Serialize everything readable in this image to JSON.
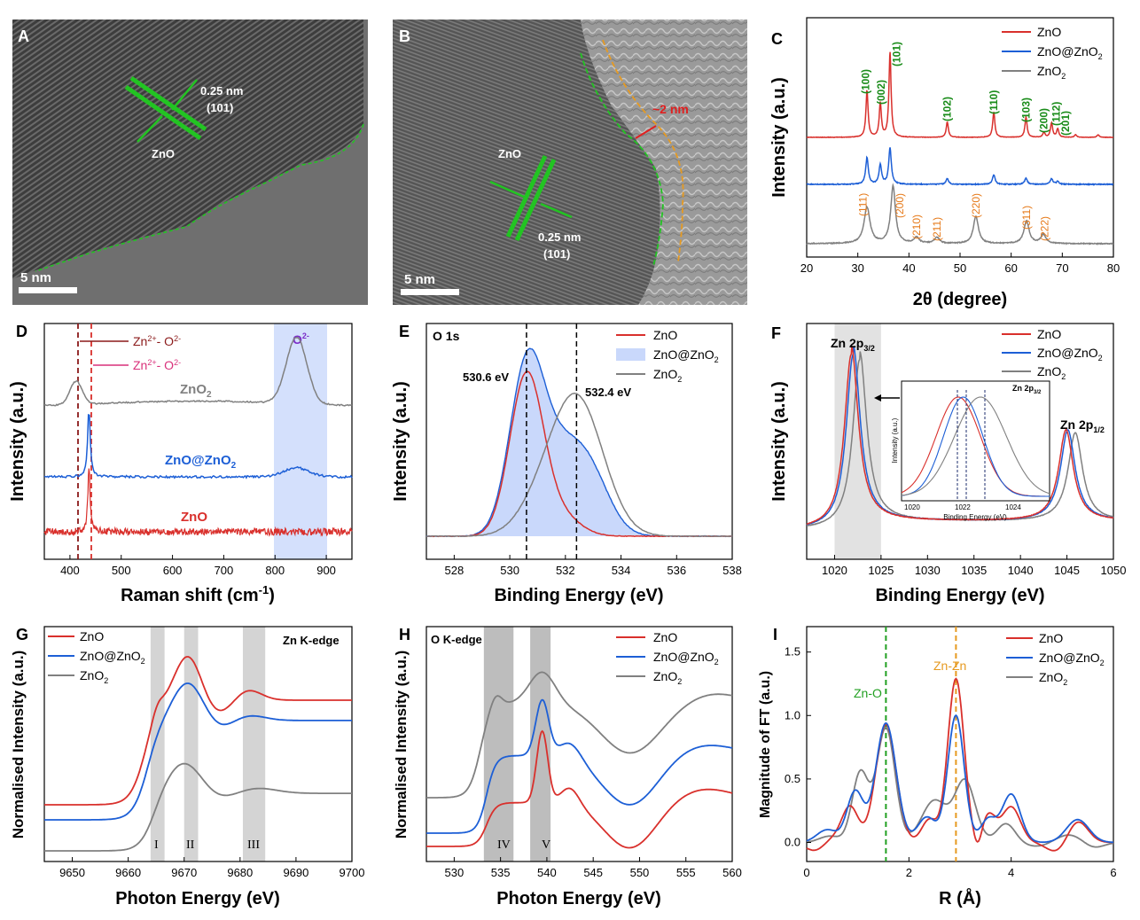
{
  "colors": {
    "zno": "#d9302c",
    "zno_zno2": "#1d5fd6",
    "zno2": "#808080",
    "green": "#22c422",
    "orange": "#e69a21",
    "shade": "#d4d4d4",
    "blue_shade": "#c9d8fb",
    "purple": "#7a2cc8"
  },
  "panels": {
    "A": {
      "letter": "A",
      "lattice": "0.25 nm",
      "plane": "(101)",
      "material": "ZnO",
      "scale": "5 nm"
    },
    "B": {
      "letter": "B",
      "lattice": "0.25 nm",
      "plane": "(101)",
      "material": "ZnO",
      "thickness": "~2 nm",
      "scale": "5 nm"
    },
    "C": {
      "letter": "C",
      "ylabel": "Intensity (a.u.)",
      "xlabel": "2θ (degree)",
      "xlim": [
        20,
        80
      ],
      "xticks": [
        "20",
        "30",
        "40",
        "50",
        "60",
        "70",
        "80"
      ],
      "legend": [
        "ZnO",
        "ZnO@ZnO",
        "ZnO"
      ],
      "legend_sub": [
        "",
        "2",
        "2"
      ],
      "zno_peaks": [
        "(100)",
        "(002)",
        "(101)",
        "(102)",
        "(110)",
        "(103)",
        "(200)",
        "(112)",
        "(201)"
      ],
      "zno2_peaks": [
        "(111)",
        "(200)",
        "(210)",
        "(211)",
        "(220)",
        "(311)",
        "(222)"
      ]
    },
    "D": {
      "letter": "D",
      "ylabel": "Intensity (a.u.)",
      "xlabel": "Raman shift (cm",
      "xlabel_sup": "-1",
      "xlabel_end": ")",
      "xlim": [
        350,
        950
      ],
      "xticks": [
        "400",
        "500",
        "600",
        "700",
        "800",
        "900"
      ],
      "ann1": "Zn",
      "ann1_sup": "2+",
      "ann1_mid": "- O",
      "ann1_sup2": "2-",
      "ann1_sub": "2",
      "ann2": "Zn",
      "ann2_sup": "2+",
      "ann2_mid": "- O",
      "ann2_sup2": "2-",
      "o2_label": "O",
      "o2_sub": "2",
      "o2_sup": "2-",
      "labels": [
        "ZnO",
        "ZnO@ZnO",
        "ZnO"
      ],
      "label_sub": [
        "2",
        "2",
        ""
      ]
    },
    "E": {
      "letter": "E",
      "title": "O 1s",
      "ylabel": "Intensity (a.u.)",
      "xlabel": "Binding Energy (eV)",
      "xlim": [
        527,
        538
      ],
      "xticks": [
        "528",
        "530",
        "532",
        "534",
        "536",
        "538"
      ],
      "peak1": "530.6 eV",
      "peak2": "532.4 eV",
      "legend": [
        "ZnO",
        "ZnO@ZnO",
        "ZnO"
      ],
      "legend_sub": [
        "",
        "2",
        "2"
      ]
    },
    "F": {
      "letter": "F",
      "ylabel": "Intensity (a.u.)",
      "xlabel": "Binding Energy (eV)",
      "xlim": [
        1017,
        1050
      ],
      "xticks": [
        "1020",
        "1025",
        "1030",
        "1035",
        "1040",
        "1045",
        "1050"
      ],
      "peak1": "Zn 2p",
      "peak1_sub": "3/2",
      "peak2": "Zn 2p",
      "peak2_sub": "1/2",
      "legend": [
        "ZnO",
        "ZnO@ZnO",
        "ZnO"
      ],
      "legend_sub": [
        "",
        "2",
        "2"
      ],
      "inset_title": "Zn 2p",
      "inset_title_sub": "3/2",
      "inset_ylabel": "Intensity (a.u.)",
      "inset_xlabel": "Binding Energy (eV)",
      "inset_xticks": [
        "1020",
        "1022",
        "1024"
      ]
    },
    "G": {
      "letter": "G",
      "title": "Zn  K-edge",
      "ylabel": "Normalised Intensity (a.u.)",
      "xlabel": "Photon Energy (eV)",
      "xlim": [
        9645,
        9700
      ],
      "xticks": [
        "9650",
        "9660",
        "9670",
        "9680",
        "9690",
        "9700"
      ],
      "regions": [
        "I",
        "II",
        "III"
      ],
      "legend": [
        "ZnO",
        "ZnO@ZnO",
        "ZnO"
      ],
      "legend_sub": [
        "",
        "2",
        "2"
      ]
    },
    "H": {
      "letter": "H",
      "title": "O  K-edge",
      "ylabel": "Normalised Intensity (a.u.)",
      "xlabel": "Photon Energy (eV)",
      "xlim": [
        527,
        560
      ],
      "xticks": [
        "530",
        "535",
        "540",
        "545",
        "550",
        "555",
        "560"
      ],
      "regions": [
        "IV",
        "V"
      ],
      "legend": [
        "ZnO",
        "ZnO@ZnO",
        "ZnO"
      ],
      "legend_sub": [
        "",
        "2",
        "2"
      ]
    },
    "I": {
      "letter": "I",
      "ylabel": "Magnitude of FT (a.u.)",
      "xlabel": "R (Å)",
      "xlim": [
        0,
        6
      ],
      "ylim": [
        -0.15,
        1.7
      ],
      "xticks": [
        "0",
        "2",
        "4",
        "6"
      ],
      "yticks": [
        "0.0",
        "0.5",
        "1.0",
        "1.5"
      ],
      "ann1": "Zn-O",
      "ann2": "Zn-Zn",
      "legend": [
        "ZnO",
        "ZnO@ZnO",
        "ZnO"
      ],
      "legend_sub": [
        "",
        "2",
        "2"
      ]
    }
  },
  "chart_data": [
    {
      "panel": "C",
      "type": "line",
      "title": "",
      "xlabel": "2θ (degree)",
      "ylabel": "Intensity (a.u.)",
      "xlim": [
        20,
        80
      ],
      "series": [
        {
          "name": "ZnO",
          "peaks_2theta": [
            31.8,
            34.4,
            36.3,
            47.5,
            56.6,
            62.9,
            66.4,
            67.9,
            69.1
          ]
        },
        {
          "name": "ZnO@ZnO2",
          "peaks_2theta": [
            31.8,
            34.4,
            36.3,
            47.5,
            56.6,
            62.9,
            67.9
          ]
        },
        {
          "name": "ZnO2",
          "peaks_2theta": [
            31.8,
            36.9,
            41.5,
            45.5,
            53.1,
            63.0,
            66.3
          ]
        }
      ]
    },
    {
      "panel": "D",
      "type": "line",
      "xlabel": "Raman shift (cm-1)",
      "ylabel": "Intensity (a.u.)",
      "xlim": [
        350,
        950
      ],
      "series": [
        {
          "name": "ZnO2",
          "peaks": [
            412,
            842
          ]
        },
        {
          "name": "ZnO@ZnO2",
          "peaks": [
            437,
            842
          ]
        },
        {
          "name": "ZnO",
          "peaks": [
            437
          ]
        }
      ]
    },
    {
      "panel": "E",
      "type": "line",
      "xlabel": "Binding Energy (eV)",
      "ylabel": "Intensity (a.u.)",
      "xlim": [
        527,
        538
      ],
      "series": [
        {
          "name": "ZnO",
          "peak": 530.6
        },
        {
          "name": "ZnO@ZnO2",
          "peaks": [
            530.6,
            532.0
          ]
        },
        {
          "name": "ZnO2",
          "peak": 532.4
        }
      ]
    },
    {
      "panel": "F",
      "type": "line",
      "xlabel": "Binding Energy (eV)",
      "ylabel": "Intensity (a.u.)",
      "xlim": [
        1017,
        1050
      ],
      "series": [
        {
          "name": "ZnO",
          "peaks": [
            1021.8,
            1044.9
          ]
        },
        {
          "name": "ZnO@ZnO2",
          "peaks": [
            1022.0,
            1045.1
          ]
        },
        {
          "name": "ZnO2",
          "peaks": [
            1022.7,
            1045.9
          ]
        }
      ]
    },
    {
      "panel": "G",
      "type": "line",
      "xlabel": "Photon Energy (eV)",
      "ylabel": "Normalised Intensity (a.u.)",
      "xlim": [
        9645,
        9700
      ],
      "series": [
        {
          "name": "ZnO"
        },
        {
          "name": "ZnO@ZnO2"
        },
        {
          "name": "ZnO2"
        }
      ]
    },
    {
      "panel": "H",
      "type": "line",
      "xlabel": "Photon Energy (eV)",
      "ylabel": "Normalised Intensity (a.u.)",
      "xlim": [
        527,
        560
      ],
      "series": [
        {
          "name": "ZnO"
        },
        {
          "name": "ZnO@ZnO2"
        },
        {
          "name": "ZnO2"
        }
      ]
    },
    {
      "panel": "I",
      "type": "line",
      "xlabel": "R (Å)",
      "ylabel": "Magnitude of FT (a.u.)",
      "xlim": [
        0,
        6
      ],
      "ylim": [
        -0.15,
        1.7
      ],
      "series": [
        {
          "name": "ZnO",
          "peaks": [
            [
              1.55,
              0.93
            ],
            [
              2.92,
              1.29
            ]
          ]
        },
        {
          "name": "ZnO@ZnO2",
          "peaks": [
            [
              1.55,
              0.94
            ],
            [
              2.92,
              1.0
            ]
          ]
        },
        {
          "name": "ZnO2",
          "peaks": [
            [
              1.05,
              0.55
            ],
            [
              1.55,
              0.9
            ],
            [
              3.1,
              0.48
            ]
          ]
        }
      ]
    }
  ]
}
